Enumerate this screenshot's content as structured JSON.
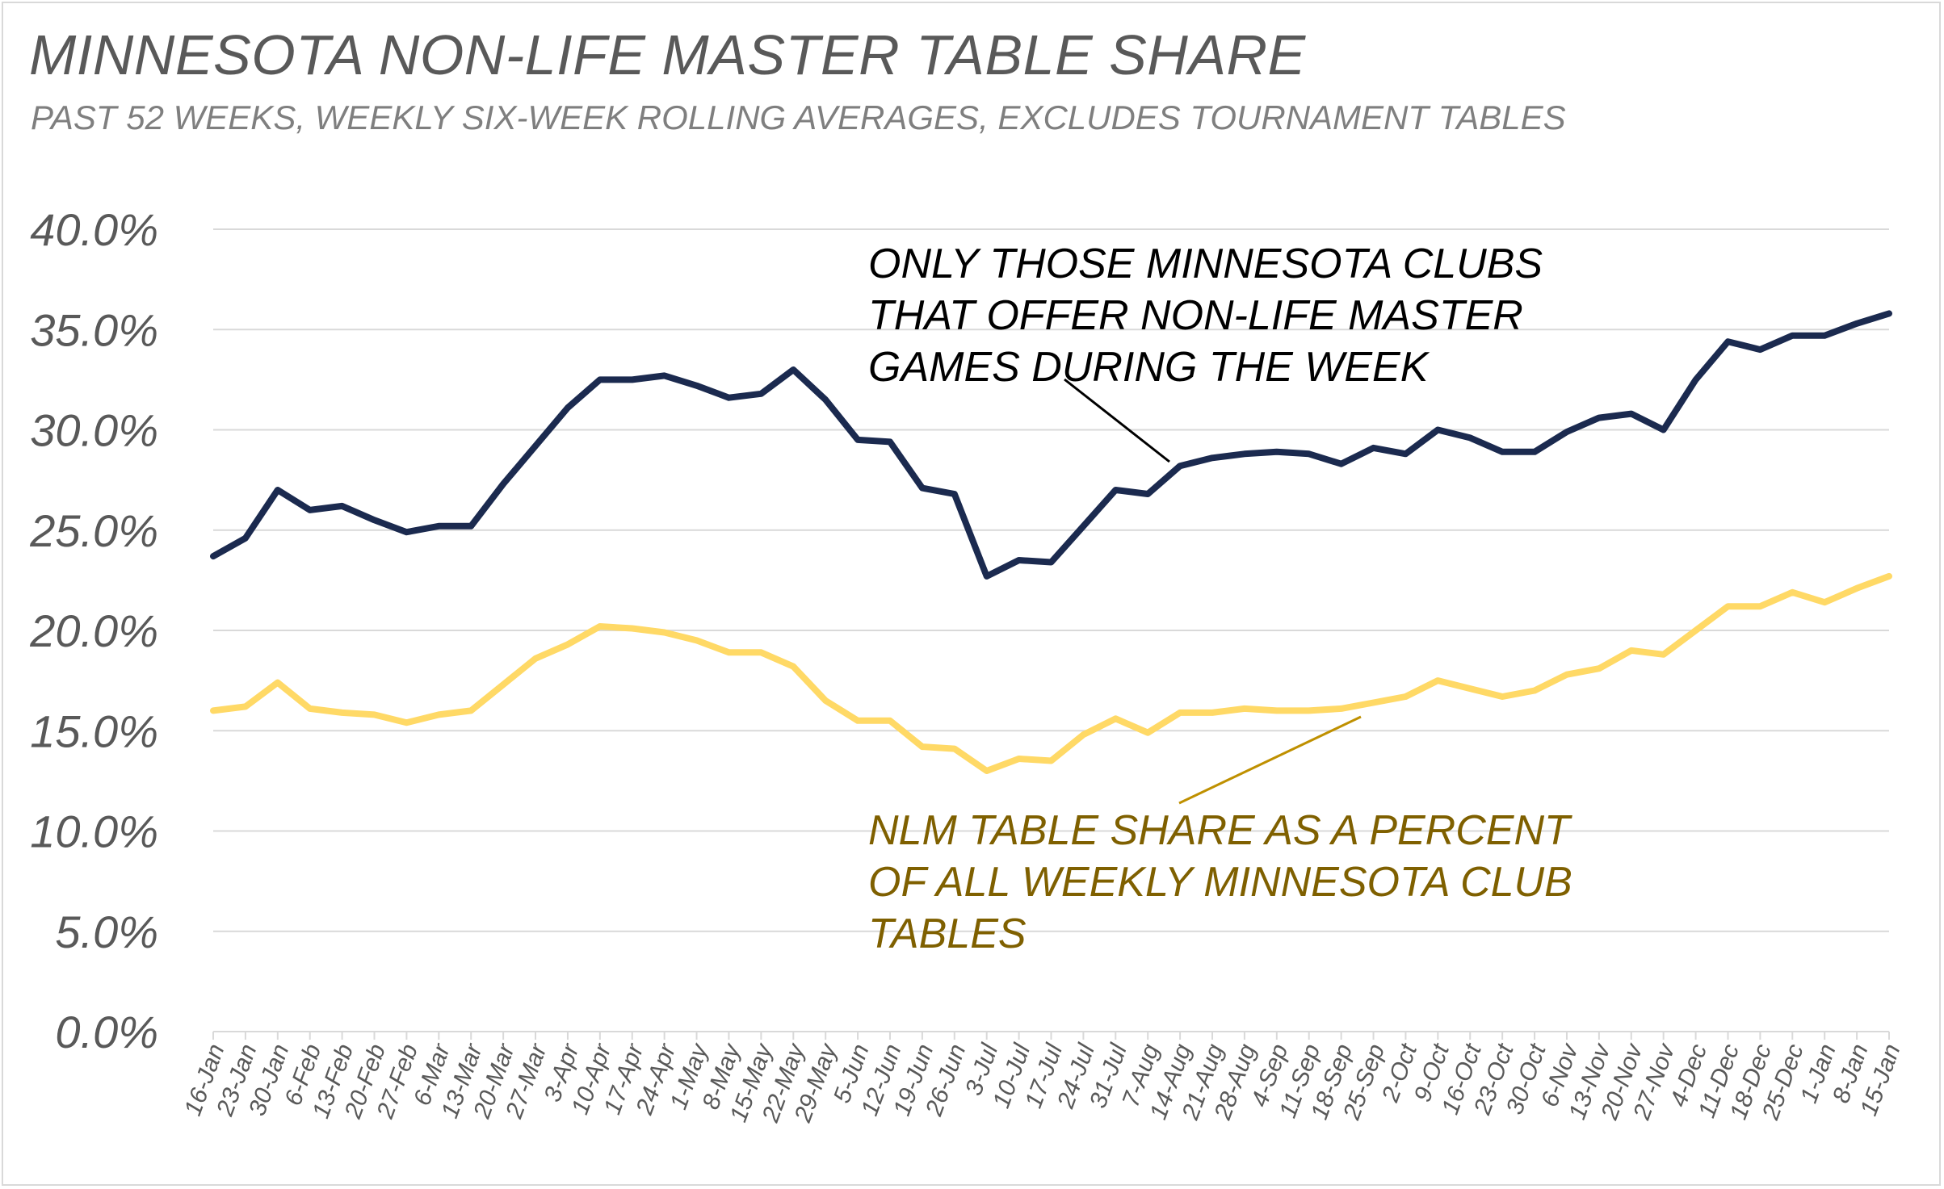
{
  "title": "MINNESOTA NON-LIFE MASTER TABLE SHARE",
  "subtitle": "PAST 52 WEEKS, WEEKLY SIX-WEEK ROLLING AVERAGES, EXCLUDES TOURNAMENT TABLES",
  "colors": {
    "series_navy": "#1b2a4f",
    "series_gold": "#ffd966",
    "annotation_gold": "#7f6000",
    "grid": "#d9d9d9",
    "axis_text": "#595959"
  },
  "chart_data": {
    "type": "line",
    "ylim": [
      0,
      40
    ],
    "ytick_labels": [
      "0.0%",
      "5.0%",
      "10.0%",
      "15.0%",
      "20.0%",
      "25.0%",
      "30.0%",
      "35.0%",
      "40.0%"
    ],
    "grid": true,
    "legend": "none",
    "categories": [
      "16-Jan",
      "23-Jan",
      "30-Jan",
      "6-Feb",
      "13-Feb",
      "20-Feb",
      "27-Feb",
      "6-Mar",
      "13-Mar",
      "20-Mar",
      "27-Mar",
      "3-Apr",
      "10-Apr",
      "17-Apr",
      "24-Apr",
      "1-May",
      "8-May",
      "15-May",
      "22-May",
      "29-May",
      "5-Jun",
      "12-Jun",
      "19-Jun",
      "26-Jun",
      "3-Jul",
      "10-Jul",
      "17-Jul",
      "24-Jul",
      "31-Jul",
      "7-Aug",
      "14-Aug",
      "21-Aug",
      "28-Aug",
      "4-Sep",
      "11-Sep",
      "18-Sep",
      "25-Sep",
      "2-Oct",
      "9-Oct",
      "16-Oct",
      "23-Oct",
      "30-Oct",
      "6-Nov",
      "13-Nov",
      "20-Nov",
      "27-Nov",
      "4-Dec",
      "11-Dec",
      "18-Dec",
      "25-Dec",
      "1-Jan",
      "8-Jan",
      "15-Jan"
    ],
    "series": [
      {
        "key": "clubs_offering_nlm",
        "color": "#1b2a4f",
        "values": [
          23.7,
          24.6,
          27.0,
          26.0,
          26.2,
          25.5,
          24.9,
          25.2,
          25.2,
          27.3,
          29.2,
          31.1,
          32.5,
          32.5,
          32.7,
          32.2,
          31.6,
          31.8,
          33.0,
          31.5,
          29.5,
          29.4,
          27.1,
          26.8,
          22.7,
          23.5,
          23.4,
          25.2,
          27.0,
          26.8,
          28.2,
          28.6,
          28.8,
          28.9,
          28.8,
          28.3,
          29.1,
          28.8,
          30.0,
          29.6,
          28.9,
          28.9,
          29.9,
          30.6,
          30.8,
          30.0,
          32.5,
          34.4,
          34.0,
          34.7,
          34.7,
          35.3,
          35.8
        ]
      },
      {
        "key": "nlm_share_all_tables",
        "color": "#ffd966",
        "values": [
          16.0,
          16.2,
          17.4,
          16.1,
          15.9,
          15.8,
          15.4,
          15.8,
          16.0,
          17.3,
          18.6,
          19.3,
          20.2,
          20.1,
          19.9,
          19.5,
          18.9,
          18.9,
          18.2,
          16.5,
          15.5,
          15.5,
          14.2,
          14.1,
          13.0,
          13.6,
          13.5,
          14.8,
          15.6,
          14.9,
          15.9,
          15.9,
          16.1,
          16.0,
          16.0,
          16.1,
          16.4,
          16.7,
          17.5,
          17.1,
          16.7,
          17.0,
          17.8,
          18.1,
          19.0,
          18.8,
          20.0,
          21.2,
          21.2,
          21.9,
          21.4,
          22.1,
          22.7
        ]
      }
    ],
    "annotations": [
      {
        "key": "navy",
        "lines": [
          "ONLY THOSE MINNESOTA CLUBS",
          "THAT OFFER NON-LIFE MASTER",
          "GAMES DURING THE WEEK"
        ]
      },
      {
        "key": "gold",
        "lines": [
          "NLM TABLE SHARE AS A PERCENT",
          "OF ALL WEEKLY MINNESOTA CLUB",
          "TABLES"
        ]
      }
    ]
  }
}
